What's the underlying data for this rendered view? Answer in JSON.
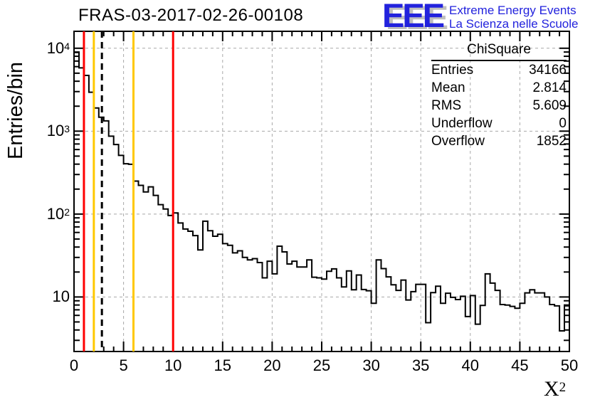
{
  "title": "FRAS-03-2017-02-26-00108",
  "logo": {
    "letters": "EEE",
    "line1": "Extreme Energy Events",
    "line2": "La Scienza nelle Scuole",
    "color": "#2222dd"
  },
  "stats": {
    "title": "ChiSquare",
    "rows": [
      {
        "label": "Entries",
        "value": "34166"
      },
      {
        "label": "Mean",
        "value": "2.814"
      },
      {
        "label": "RMS",
        "value": "5.609"
      },
      {
        "label": "Underflow",
        "value": "0"
      },
      {
        "label": "Overflow",
        "value": "1852"
      }
    ]
  },
  "chart_data": {
    "type": "bar",
    "subtype": "step-histogram",
    "title": "FRAS-03-2017-02-26-00108",
    "xlabel": {
      "base": "X",
      "sup": "2"
    },
    "ylabel": "Entries/bin",
    "yscale": "log",
    "xlim": [
      0,
      50
    ],
    "ylim": [
      2.2,
      16000
    ],
    "bin_width": 0.5,
    "bin_start": 0,
    "grid": "dashed-gray",
    "line_color": "#000000",
    "grid_color": "#a8a8a8",
    "values": [
      8900,
      5800,
      4700,
      2950,
      1900,
      1470,
      1330,
      870,
      690,
      510,
      405,
      398,
      250,
      222,
      185,
      213,
      168,
      130,
      115,
      96,
      103,
      78,
      66,
      62,
      55,
      37,
      82,
      63,
      54,
      57,
      44,
      42,
      34,
      36,
      30,
      28,
      29,
      26,
      17,
      27,
      19,
      41,
      35,
      25,
      27,
      23,
      23,
      28,
      17.3,
      17,
      16.4,
      20.4,
      21.8,
      17,
      13.2,
      20.6,
      12.2,
      18.4,
      12.3,
      11.9,
      8.4,
      28,
      22,
      17.5,
      14,
      12,
      16,
      9.2,
      11.6,
      14.2,
      14.2,
      4.9,
      11.3,
      13.5,
      8.4,
      11.1,
      9.9,
      9.3,
      10.2,
      5.8,
      10.4,
      4.7,
      7.9,
      19,
      14.7,
      12,
      8.1,
      8.0,
      7.7,
      7.3,
      8.4,
      11.2,
      12.2,
      11.2,
      11.2,
      10,
      8.1,
      7.8,
      3.9,
      7.8
    ],
    "xticks": [
      {
        "value": 0,
        "label": "0"
      },
      {
        "value": 5,
        "label": "5"
      },
      {
        "value": 10,
        "label": "10"
      },
      {
        "value": 15,
        "label": "15"
      },
      {
        "value": 20,
        "label": "20"
      },
      {
        "value": 25,
        "label": "25"
      },
      {
        "value": 30,
        "label": "30"
      },
      {
        "value": 35,
        "label": "35"
      },
      {
        "value": 40,
        "label": "40"
      },
      {
        "value": 45,
        "label": "45"
      },
      {
        "value": 50,
        "label": "50"
      }
    ],
    "yticks": [
      {
        "value": 10,
        "base": "10",
        "exp": ""
      },
      {
        "value": 100,
        "base": "10",
        "exp": "2"
      },
      {
        "value": 1000,
        "base": "10",
        "exp": "3"
      },
      {
        "value": 10000,
        "base": "10",
        "exp": "4"
      }
    ],
    "vlines": [
      {
        "x": 1,
        "color": "#ff0000",
        "style": "solid",
        "name": "red-cut-line-1"
      },
      {
        "x": 2,
        "color": "#ffc800",
        "style": "solid",
        "name": "yellow-cut-line-2"
      },
      {
        "x": 2.814,
        "color": "#000000",
        "style": "dashed",
        "name": "mean-dashed-line"
      },
      {
        "x": 6,
        "color": "#ffc800",
        "style": "solid",
        "name": "yellow-cut-line-6"
      },
      {
        "x": 10,
        "color": "#ff0000",
        "style": "solid",
        "name": "red-cut-line-10"
      }
    ]
  }
}
